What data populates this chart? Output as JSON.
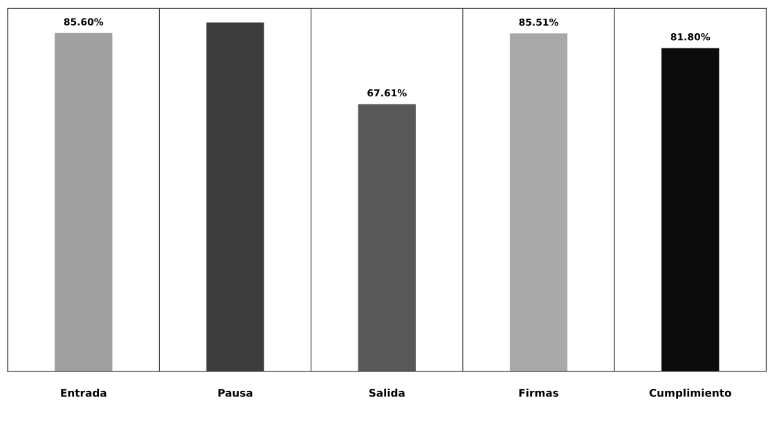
{
  "chart_data": {
    "type": "bar",
    "categories": [
      "Entrada",
      "Pausa",
      "Salida",
      "Firmas",
      "Cumplimiento"
    ],
    "values": [
      85.6,
      88.3,
      67.61,
      85.51,
      81.8
    ],
    "colors": [
      "#a0a0a0",
      "#3c3c3c",
      "#585858",
      "#a9a9a9",
      "#0c0c0c"
    ],
    "value_labels": [
      "85.60%",
      null,
      "67.61%",
      "85.51%",
      "81.80%"
    ],
    "grid": false,
    "legend": false
  }
}
